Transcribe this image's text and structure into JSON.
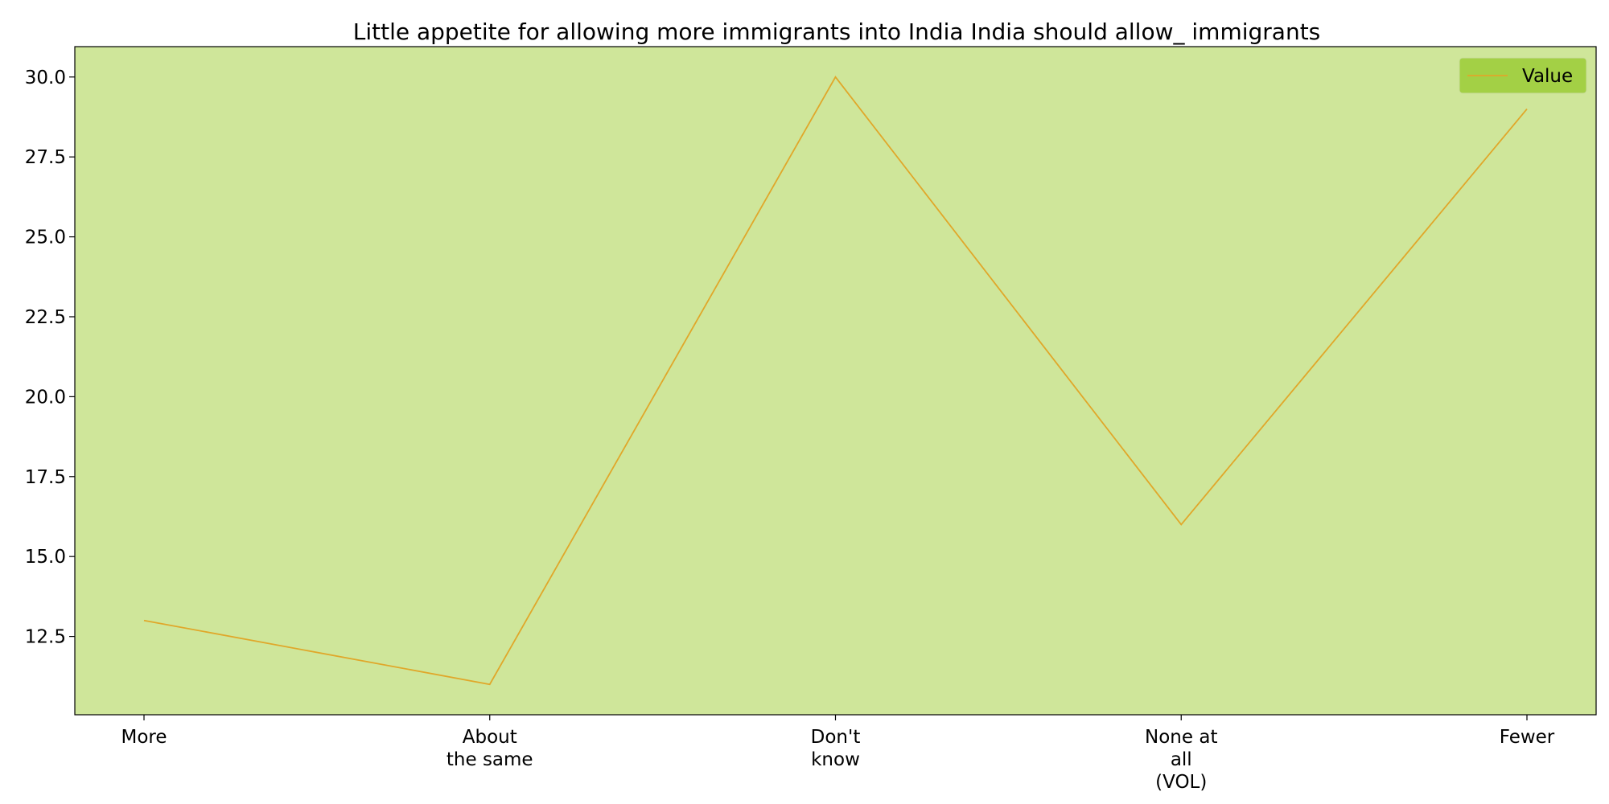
{
  "chart_data": {
    "type": "line",
    "title": "Little appetite for allowing more immigrants into India India should allow_ immigrants",
    "xlabel": "",
    "ylabel": "",
    "categories": [
      "More",
      "About\nthe same",
      "Don't\nknow",
      "None at\nall\n(VOL)",
      "Fewer"
    ],
    "series": [
      {
        "name": "Value",
        "values": [
          13,
          11,
          30,
          16,
          29
        ]
      }
    ],
    "ylim": [
      10.05,
      30.95
    ],
    "yticks": [
      12.5,
      15.0,
      17.5,
      20.0,
      22.5,
      25.0,
      27.5,
      30.0
    ],
    "grid": false,
    "legend_position": "top-right",
    "colors": {
      "plot_background": "#cfe69a",
      "line": "#e0a72a",
      "legend_background": "#a3d045",
      "axis": "#000000"
    }
  }
}
